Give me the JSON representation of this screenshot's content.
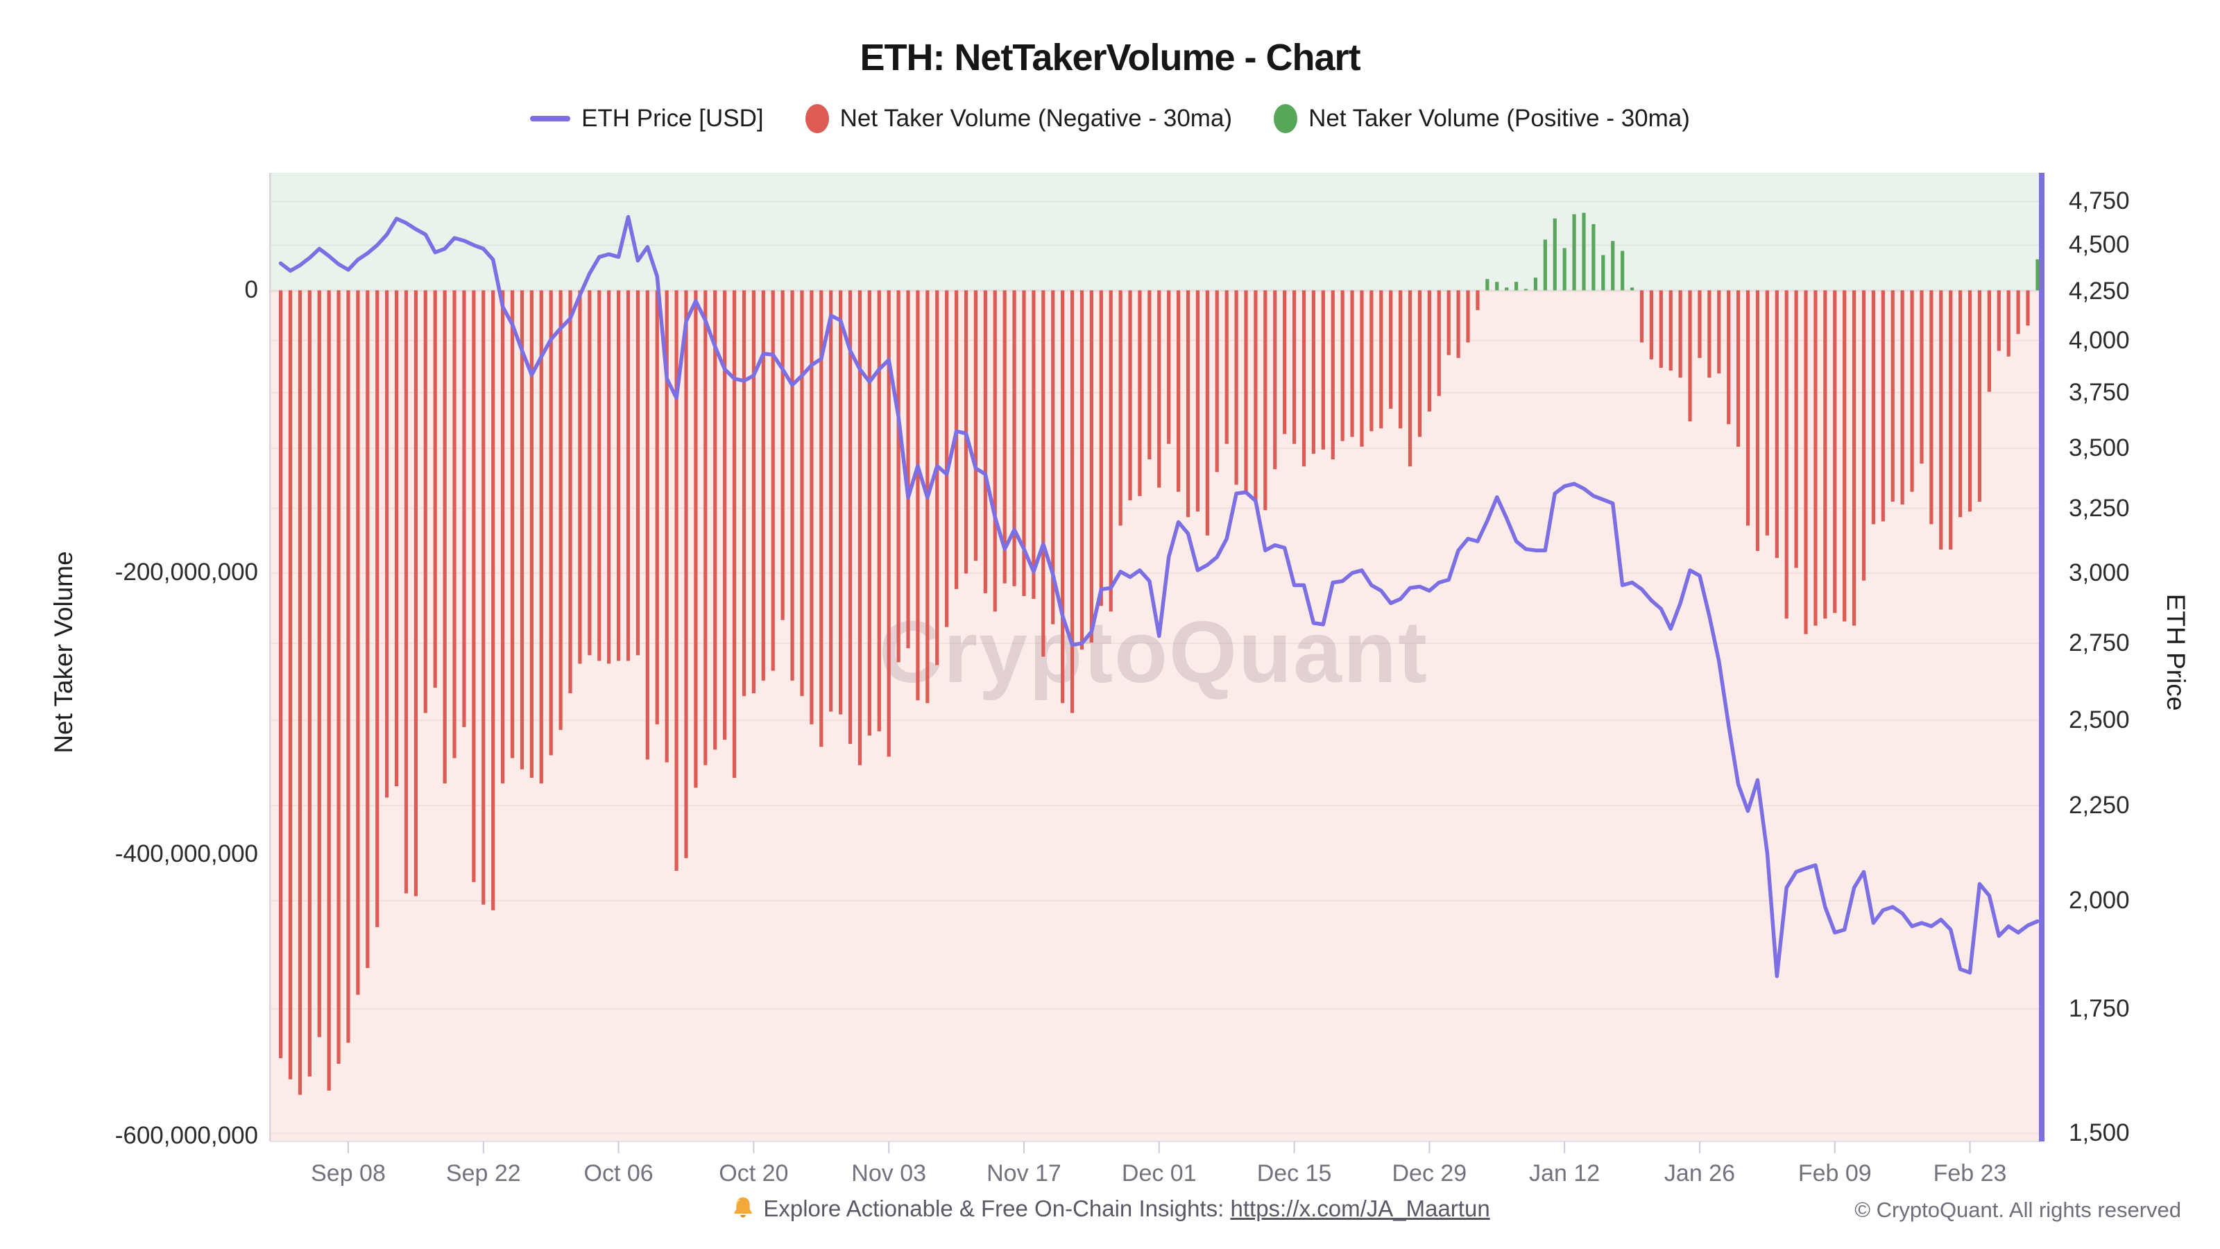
{
  "page": {
    "title": "ETH: NetTakerVolume - Chart"
  },
  "legend": {
    "items": [
      {
        "label": "ETH Price [USD]",
        "swatch": "line",
        "color": "#7c6ee3"
      },
      {
        "label": "Net Taker Volume (Negative - 30ma)",
        "swatch": "dot",
        "color": "#dc5b55"
      },
      {
        "label": "Net Taker Volume (Positive - 30ma)",
        "swatch": "dot",
        "color": "#56a75a"
      }
    ]
  },
  "watermark": {
    "text": "CryptoQuant"
  },
  "footer": {
    "bell_icon": "bell-icon",
    "promo_text": "Explore Actionable & Free On-Chain Insights: ",
    "promo_link": "https://x.com/JA_Maartun",
    "copyright": "© CryptoQuant. All rights reserved"
  },
  "chart_data": {
    "type": "bar+line",
    "title": "ETH: NetTakerVolume - Chart",
    "n_days": 183,
    "x_start": "Sep 01",
    "x_end": "Mar 02",
    "background": {
      "positive_band": "#e9f2eb",
      "negative_band": "#fcece9"
    },
    "left_axis": {
      "title": "Net Taker Volume",
      "scale": "linear",
      "range_millions": [
        -604,
        83
      ],
      "ticks": [
        {
          "label": "0",
          "value_millions": 0
        },
        {
          "label": "-200,000,000",
          "value_millions": -200
        },
        {
          "label": "-400,000,000",
          "value_millions": -400
        },
        {
          "label": "-600,000,000",
          "value_millions": -600
        }
      ]
    },
    "right_axis": {
      "title": "ETH Price",
      "scale": "log",
      "range": [
        1490,
        4790
      ],
      "ticks": [
        {
          "label": "4,750",
          "value": 4750
        },
        {
          "label": "4,500",
          "value": 4500
        },
        {
          "label": "4,250",
          "value": 4250
        },
        {
          "label": "4,000",
          "value": 4000
        },
        {
          "label": "3,750",
          "value": 3750
        },
        {
          "label": "3,500",
          "value": 3500
        },
        {
          "label": "3,250",
          "value": 3250
        },
        {
          "label": "3,000",
          "value": 3000
        },
        {
          "label": "2,750",
          "value": 2750
        },
        {
          "label": "2,500",
          "value": 2500
        },
        {
          "label": "2,250",
          "value": 2250
        },
        {
          "label": "2,000",
          "value": 2000
        },
        {
          "label": "1,750",
          "value": 1750
        },
        {
          "label": "1,500",
          "value": 1500
        }
      ]
    },
    "x_axis": {
      "ticks": [
        {
          "label": "Sep 08",
          "index": 7
        },
        {
          "label": "Sep 22",
          "index": 21
        },
        {
          "label": "Oct 06",
          "index": 35
        },
        {
          "label": "Oct 20",
          "index": 49
        },
        {
          "label": "Nov 03",
          "index": 63
        },
        {
          "label": "Nov 17",
          "index": 77
        },
        {
          "label": "Dec 01",
          "index": 91
        },
        {
          "label": "Dec 15",
          "index": 105
        },
        {
          "label": "Dec 29",
          "index": 119
        },
        {
          "label": "Jan 12",
          "index": 133
        },
        {
          "label": "Jan 26",
          "index": 147
        },
        {
          "label": "Feb 09",
          "index": 161
        },
        {
          "label": "Feb 23",
          "index": 175
        }
      ]
    },
    "series": [
      {
        "name": "ETH Price [USD]",
        "type": "line",
        "axis": "right",
        "color": "#7c6ee3",
        "values": [
          4400,
          4360,
          4390,
          4430,
          4480,
          4440,
          4395,
          4365,
          4420,
          4455,
          4500,
          4560,
          4650,
          4625,
          4590,
          4560,
          4460,
          4480,
          4540,
          4525,
          4500,
          4480,
          4420,
          4170,
          4080,
          3950,
          3833,
          3920,
          4005,
          4060,
          4110,
          4230,
          4345,
          4435,
          4450,
          4435,
          4660,
          4415,
          4490,
          4330,
          3815,
          3725,
          4095,
          4200,
          4100,
          3970,
          3860,
          3815,
          3805,
          3830,
          3935,
          3930,
          3860,
          3785,
          3830,
          3880,
          3910,
          4125,
          4100,
          3950,
          3860,
          3800,
          3860,
          3905,
          3640,
          3293,
          3425,
          3293,
          3425,
          3390,
          3575,
          3565,
          3415,
          3390,
          3215,
          3090,
          3165,
          3090,
          3005,
          3110,
          2995,
          2845,
          2745,
          2750,
          2790,
          2940,
          2945,
          3005,
          2985,
          3010,
          2970,
          2775,
          3060,
          3195,
          3150,
          3010,
          3030,
          3060,
          3130,
          3310,
          3315,
          3280,
          3085,
          3105,
          3095,
          2955,
          2955,
          2820,
          2815,
          2965,
          2970,
          3000,
          3010,
          2955,
          2935,
          2890,
          2905,
          2945,
          2950,
          2935,
          2965,
          2975,
          3085,
          3130,
          3120,
          3200,
          3295,
          3210,
          3120,
          3090,
          3085,
          3085,
          3310,
          3340,
          3350,
          3330,
          3300,
          3285,
          3270,
          2955,
          2965,
          2940,
          2900,
          2870,
          2800,
          2890,
          3010,
          2990,
          2845,
          2690,
          2485,
          2310,
          2235,
          2322,
          2122,
          1822,
          2033,
          2073,
          2082,
          2090,
          1985,
          1923,
          1930,
          2033,
          2073,
          1946,
          1977,
          1985,
          1969,
          1938,
          1946,
          1938,
          1954,
          1930,
          1838,
          1830,
          2042,
          2013,
          1915,
          1938,
          1923,
          1940,
          1950
        ]
      },
      {
        "name": "Net Taker Volume (30ma)",
        "type": "bar",
        "axis": "left",
        "negative_color": "#dc5b55",
        "positive_color": "#5aa55c",
        "values_millions": [
          -545,
          -560,
          -571,
          -558,
          -530,
          -568,
          -549,
          -534,
          -500,
          -481,
          -452,
          -360,
          -352,
          -428,
          -430,
          -300,
          -282,
          -350,
          -332,
          -310,
          -420,
          -436,
          -440,
          -350,
          -332,
          -340,
          -346,
          -350,
          -330,
          -312,
          -286,
          -265,
          -259,
          -263,
          -265,
          -263,
          -263,
          -259,
          -333,
          -308,
          -335,
          -412,
          -403,
          -353,
          -337,
          -326,
          -319,
          -346,
          -288,
          -286,
          -277,
          -270,
          -234,
          -277,
          -288,
          -308,
          -324,
          -299,
          -301,
          -322,
          -337,
          -316,
          -313,
          -331,
          -264,
          -254,
          -291,
          -293,
          -266,
          -239,
          -212,
          -201,
          -192,
          -215,
          -228,
          -208,
          -210,
          -217,
          -219,
          -260,
          -237,
          -293,
          -300,
          -255,
          -250,
          -224,
          -228,
          -167,
          -149,
          -146,
          -120,
          -140,
          -109,
          -143,
          -161,
          -157,
          -174,
          -129,
          -109,
          -138,
          -143,
          -149,
          -156,
          -127,
          -102,
          -109,
          -125,
          -116,
          -113,
          -120,
          -107,
          -104,
          -111,
          -100,
          -98,
          -84,
          -98,
          -125,
          -104,
          -86,
          -75,
          -46,
          -48,
          -37,
          -14,
          8,
          6,
          2,
          6,
          1,
          9,
          36,
          51,
          30,
          54,
          55,
          47,
          25,
          35,
          28,
          2,
          -37,
          -49,
          -55,
          -57,
          -62,
          -93,
          -48,
          -62,
          -59,
          -95,
          -111,
          -167,
          -185,
          -174,
          -190,
          -233,
          -197,
          -244,
          -238,
          -233,
          -229,
          -235,
          -238,
          -206,
          -166,
          -164,
          -150,
          -152,
          -143,
          -123,
          -166,
          -184,
          -184,
          -161,
          -157,
          -150,
          -72,
          -43,
          -47,
          -31,
          -25,
          22
        ]
      }
    ]
  }
}
